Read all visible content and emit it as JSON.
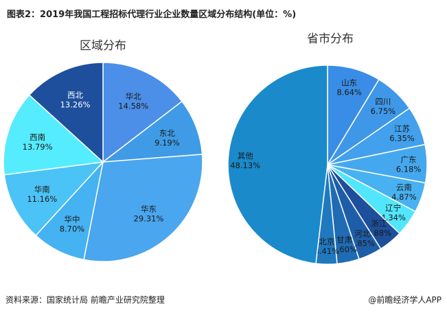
{
  "title": "图表2：2019年我国工程招标代理行业企业数量区域分布结构(单位：%)",
  "footer": {
    "source": "资料来源：国家统计局 前瞻产业研究院整理",
    "brand": "@前瞻经济学人APP"
  },
  "chart_data": [
    {
      "type": "pie",
      "title": "区域分布",
      "slices": [
        {
          "label": "华北",
          "value": 14.58,
          "display": "14.58%",
          "color": "#4b8fe8",
          "text_color": "#1a1a1a"
        },
        {
          "label": "东北",
          "value": 9.19,
          "display": "9.19%",
          "color": "#3f9be6",
          "text_color": "#1a1a1a"
        },
        {
          "label": "华东",
          "value": 29.31,
          "display": "29.31%",
          "color": "#4aa6ee",
          "text_color": "#1a1a1a"
        },
        {
          "label": "华中",
          "value": 8.7,
          "display": "8.70%",
          "color": "#45b2f2",
          "text_color": "#1a1a1a"
        },
        {
          "label": "华南",
          "value": 11.16,
          "display": "11.16%",
          "color": "#4cc3f6",
          "text_color": "#1a1a1a"
        },
        {
          "label": "西南",
          "value": 13.79,
          "display": "13.79%",
          "color": "#55ecff",
          "text_color": "#1a1a1a"
        },
        {
          "label": "西北",
          "value": 13.26,
          "display": "13.26%",
          "color": "#1d4f9c",
          "text_color": "#ffffff"
        }
      ]
    },
    {
      "type": "pie",
      "title": "省市分布",
      "slices": [
        {
          "label": "山东",
          "value": 8.64,
          "display": "8.64%",
          "color": "#3a8de6",
          "text_color": "#1a1a1a"
        },
        {
          "label": "四川",
          "value": 6.75,
          "display": "6.75%",
          "color": "#3f97e8",
          "text_color": "#1a1a1a"
        },
        {
          "label": "江苏",
          "value": 6.35,
          "display": "6.35%",
          "color": "#42a0ec",
          "text_color": "#1a1a1a"
        },
        {
          "label": "广东",
          "value": 6.18,
          "display": "6.18%",
          "color": "#45a8ee",
          "text_color": "#1a1a1a"
        },
        {
          "label": "云南",
          "value": 4.87,
          "display": "4.87%",
          "color": "#48b1f1",
          "text_color": "#1a1a1a"
        },
        {
          "label": "辽宁",
          "value": 4.34,
          "display": "4.34%",
          "color": "#52e6fc",
          "text_color": "#1a1a1a"
        },
        {
          "label": "浙江",
          "value": 3.88,
          "display": "3.88%",
          "color": "#1d4f9c",
          "text_color": "#1a1a1a"
        },
        {
          "label": "河北",
          "value": 3.85,
          "display": "3.85%",
          "color": "#1e5ea8",
          "text_color": "#1a1a1a"
        },
        {
          "label": "甘肃",
          "value": 3.6,
          "display": "3.60%",
          "color": "#1f6cb4",
          "text_color": "#1a1a1a"
        },
        {
          "label": "北京",
          "value": 3.41,
          "display": "3.41%",
          "color": "#2079be",
          "text_color": "#1a1a1a"
        },
        {
          "label": "其他",
          "value": 48.13,
          "display": "48.13%",
          "color": "#1a8acb",
          "text_color": "#1a1a1a"
        }
      ]
    }
  ]
}
